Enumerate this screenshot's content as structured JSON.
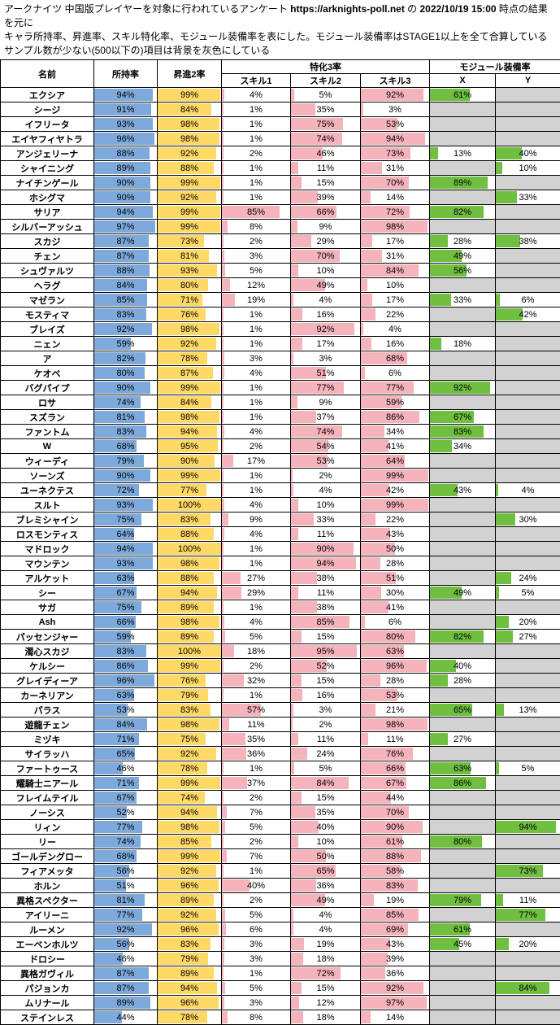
{
  "header": {
    "line1_pre": "アークナイツ 中国版プレイヤーを対象に行われているアンケート ",
    "line1_url": "https://arknights-poll.net",
    "line1_mid": " の ",
    "line1_datetime": "2022/10/19 15:00",
    "line1_post": " 時点の結果を元に",
    "line2": "キャラ所持率、昇進率、スキル特化率、モジュール装備率を表にした。モジュール装備率はSTAGE1以上を全て合算している",
    "line3": "サンプル数が少ない(500以下の)項目は背景を灰色にしている"
  },
  "colors": {
    "own_bar": "#7EA9DB",
    "own_bar_border": "#4472C4",
    "promo_bar": "#FFD966",
    "promo_bar_border": "#BF8F00",
    "skill_bar": "#F5B3BC",
    "skill_bar_border": "#E08C99",
    "module_bar": "#70BF41",
    "module_bar_border": "#538135",
    "missing_bg": "#D2D2D2",
    "grid": "#000000"
  },
  "chart_data": {
    "type": "table",
    "title": "アークナイツ 中国版プレイヤー アンケート結果 (所持率・昇進2率・特化3率・モジュール装備率)",
    "unit": "%",
    "columns": {
      "name": "名前",
      "own": "所持率",
      "promo": "昇進2率",
      "mastery_group": "特化3率",
      "skill1": "スキル1",
      "skill2": "スキル2",
      "skill3": "スキル3",
      "module_group": "モジュール装備率",
      "module_x": "X",
      "module_y": "Y"
    },
    "rows": [
      {
        "name": "エクシア",
        "own": 94,
        "promo": 99,
        "s1": 4,
        "s2": 5,
        "s3": 92,
        "x": 61,
        "y": null
      },
      {
        "name": "シージ",
        "own": 91,
        "promo": 84,
        "s1": 1,
        "s2": 35,
        "s3": 3,
        "x": null,
        "y": null
      },
      {
        "name": "イフリータ",
        "own": 93,
        "promo": 98,
        "s1": 1,
        "s2": 75,
        "s3": 53,
        "x": null,
        "y": null
      },
      {
        "name": "エイヤフィヤトラ",
        "own": 96,
        "promo": 98,
        "s1": 1,
        "s2": 74,
        "s3": 94,
        "x": null,
        "y": null
      },
      {
        "name": "アンジェリーナ",
        "own": 88,
        "promo": 92,
        "s1": 2,
        "s2": 46,
        "s3": 73,
        "x": 13,
        "y": 40
      },
      {
        "name": "シャイニング",
        "own": 89,
        "promo": 88,
        "s1": 1,
        "s2": 11,
        "s3": 31,
        "x": null,
        "y": 10
      },
      {
        "name": "ナイチンゲール",
        "own": 90,
        "promo": 99,
        "s1": 1,
        "s2": 15,
        "s3": 70,
        "x": 89,
        "y": null
      },
      {
        "name": "ホシグマ",
        "own": 90,
        "promo": 92,
        "s1": 1,
        "s2": 39,
        "s3": 14,
        "x": null,
        "y": 33
      },
      {
        "name": "サリア",
        "own": 94,
        "promo": 99,
        "s1": 85,
        "s2": 66,
        "s3": 72,
        "x": 82,
        "y": null
      },
      {
        "name": "シルバーアッシュ",
        "own": 97,
        "promo": 99,
        "s1": 8,
        "s2": 9,
        "s3": 98,
        "x": null,
        "y": null
      },
      {
        "name": "スカジ",
        "own": 87,
        "promo": 73,
        "s1": 2,
        "s2": 29,
        "s3": 17,
        "x": 28,
        "y": 38
      },
      {
        "name": "チェン",
        "own": 87,
        "promo": 81,
        "s1": 3,
        "s2": 70,
        "s3": 31,
        "x": 49,
        "y": null
      },
      {
        "name": "シュヴァルツ",
        "own": 88,
        "promo": 93,
        "s1": 5,
        "s2": 10,
        "s3": 84,
        "x": 56,
        "y": null
      },
      {
        "name": "ヘラグ",
        "own": 84,
        "promo": 80,
        "s1": 12,
        "s2": 49,
        "s3": 10,
        "x": null,
        "y": null
      },
      {
        "name": "マゼラン",
        "own": 85,
        "promo": 71,
        "s1": 19,
        "s2": 4,
        "s3": 17,
        "x": 33,
        "y": 6
      },
      {
        "name": "モスティマ",
        "own": 83,
        "promo": 76,
        "s1": 1,
        "s2": 16,
        "s3": 22,
        "x": null,
        "y": 42
      },
      {
        "name": "ブレイズ",
        "own": 92,
        "promo": 98,
        "s1": 1,
        "s2": 92,
        "s3": 4,
        "x": null,
        "y": null
      },
      {
        "name": "ニェン",
        "own": 59,
        "promo": 92,
        "s1": 1,
        "s2": 17,
        "s3": 16,
        "x": 18,
        "y": null
      },
      {
        "name": "ア",
        "own": 82,
        "promo": 78,
        "s1": 3,
        "s2": 3,
        "s3": 68,
        "x": null,
        "y": null
      },
      {
        "name": "ケオベ",
        "own": 80,
        "promo": 87,
        "s1": 4,
        "s2": 51,
        "s3": 6,
        "x": null,
        "y": null
      },
      {
        "name": "バグパイプ",
        "own": 90,
        "promo": 99,
        "s1": 1,
        "s2": 77,
        "s3": 77,
        "x": 92,
        "y": null
      },
      {
        "name": "ロサ",
        "own": 74,
        "promo": 84,
        "s1": 1,
        "s2": 9,
        "s3": 59,
        "x": null,
        "y": null
      },
      {
        "name": "スズラン",
        "own": 81,
        "promo": 98,
        "s1": 1,
        "s2": 37,
        "s3": 86,
        "x": 67,
        "y": null
      },
      {
        "name": "ファントム",
        "own": 83,
        "promo": 94,
        "s1": 4,
        "s2": 74,
        "s3": 34,
        "x": 83,
        "y": null
      },
      {
        "name": "W",
        "own": 68,
        "promo": 95,
        "s1": 2,
        "s2": 54,
        "s3": 41,
        "x": 34,
        "y": null
      },
      {
        "name": "ウィーディ",
        "own": 79,
        "promo": 90,
        "s1": 17,
        "s2": 53,
        "s3": 64,
        "x": null,
        "y": null
      },
      {
        "name": "ソーンズ",
        "own": 90,
        "promo": 99,
        "s1": 1,
        "s2": 2,
        "s3": 99,
        "x": null,
        "y": null
      },
      {
        "name": "ユーネクテス",
        "own": 72,
        "promo": 77,
        "s1": 1,
        "s2": 4,
        "s3": 42,
        "x": 43,
        "y": 4
      },
      {
        "name": "スルト",
        "own": 93,
        "promo": 100,
        "s1": 4,
        "s2": 10,
        "s3": 99,
        "x": null,
        "y": null
      },
      {
        "name": "ブレミシャイン",
        "own": 75,
        "promo": 83,
        "s1": 9,
        "s2": 33,
        "s3": 22,
        "x": null,
        "y": 30
      },
      {
        "name": "ロスモンティス",
        "own": 64,
        "promo": 88,
        "s1": 4,
        "s2": 11,
        "s3": 43,
        "x": null,
        "y": null
      },
      {
        "name": "マドロック",
        "own": 94,
        "promo": 100,
        "s1": 1,
        "s2": 90,
        "s3": 50,
        "x": null,
        "y": null
      },
      {
        "name": "マウンテン",
        "own": 93,
        "promo": 98,
        "s1": 1,
        "s2": 94,
        "s3": 28,
        "x": null,
        "y": null
      },
      {
        "name": "アルケット",
        "own": 63,
        "promo": 88,
        "s1": 27,
        "s2": 38,
        "s3": 51,
        "x": null,
        "y": 24
      },
      {
        "name": "シー",
        "own": 67,
        "promo": 94,
        "s1": 29,
        "s2": 11,
        "s3": 30,
        "x": 49,
        "y": 5
      },
      {
        "name": "サガ",
        "own": 75,
        "promo": 89,
        "s1": 1,
        "s2": 38,
        "s3": 41,
        "x": null,
        "y": null
      },
      {
        "name": "Ash",
        "own": 66,
        "promo": 98,
        "s1": 4,
        "s2": 85,
        "s3": 6,
        "x": null,
        "y": 20
      },
      {
        "name": "パッセンジャー",
        "own": 59,
        "promo": 89,
        "s1": 5,
        "s2": 15,
        "s3": 80,
        "x": 82,
        "y": 27
      },
      {
        "name": "濁心スカジ",
        "own": 83,
        "promo": 100,
        "s1": 18,
        "s2": 95,
        "s3": 63,
        "x": null,
        "y": null
      },
      {
        "name": "ケルシー",
        "own": 86,
        "promo": 99,
        "s1": 2,
        "s2": 52,
        "s3": 96,
        "x": 40,
        "y": null
      },
      {
        "name": "グレイディーア",
        "own": 96,
        "promo": 76,
        "s1": 32,
        "s2": 15,
        "s3": 28,
        "x": 28,
        "y": null
      },
      {
        "name": "カーネリアン",
        "own": 63,
        "promo": 79,
        "s1": 1,
        "s2": 16,
        "s3": 53,
        "x": null,
        "y": null
      },
      {
        "name": "パラス",
        "own": 53,
        "promo": 83,
        "s1": 57,
        "s2": 3,
        "s3": 21,
        "x": 65,
        "y": 13
      },
      {
        "name": "遊龍チェン",
        "own": 84,
        "promo": 98,
        "s1": 11,
        "s2": 2,
        "s3": 98,
        "x": null,
        "y": null
      },
      {
        "name": "ミヅキ",
        "own": 71,
        "promo": 75,
        "s1": 35,
        "s2": 11,
        "s3": 11,
        "x": 27,
        "y": null
      },
      {
        "name": "サイラッハ",
        "own": 65,
        "promo": 92,
        "s1": 36,
        "s2": 24,
        "s3": 76,
        "x": null,
        "y": null
      },
      {
        "name": "ファートゥース",
        "own": 46,
        "promo": 78,
        "s1": 1,
        "s2": 5,
        "s3": 66,
        "x": 63,
        "y": 5
      },
      {
        "name": "耀騎士ニアール",
        "own": 71,
        "promo": 99,
        "s1": 37,
        "s2": 84,
        "s3": 67,
        "x": 86,
        "y": null
      },
      {
        "name": "フレイムテイル",
        "own": 67,
        "promo": 74,
        "s1": 2,
        "s2": 15,
        "s3": 44,
        "x": null,
        "y": null
      },
      {
        "name": "ノーシス",
        "own": 52,
        "promo": 94,
        "s1": 7,
        "s2": 35,
        "s3": 70,
        "x": null,
        "y": null
      },
      {
        "name": "リィン",
        "own": 77,
        "promo": 98,
        "s1": 5,
        "s2": 40,
        "s3": 90,
        "x": null,
        "y": 94
      },
      {
        "name": "リー",
        "own": 74,
        "promo": 85,
        "s1": 2,
        "s2": 10,
        "s3": 61,
        "x": 80,
        "y": null
      },
      {
        "name": "ゴールデングロー",
        "own": 68,
        "promo": 99,
        "s1": 7,
        "s2": 50,
        "s3": 88,
        "x": null,
        "y": null
      },
      {
        "name": "フィアメッタ",
        "own": 56,
        "promo": 92,
        "s1": 1,
        "s2": 65,
        "s3": 58,
        "x": null,
        "y": 73
      },
      {
        "name": "ホルン",
        "own": 51,
        "promo": 96,
        "s1": 40,
        "s2": 36,
        "s3": 83,
        "x": null,
        "y": null
      },
      {
        "name": "異格スペクター",
        "own": 81,
        "promo": 89,
        "s1": 2,
        "s2": 49,
        "s3": 19,
        "x": 79,
        "y": 11
      },
      {
        "name": "アイリーニ",
        "own": 77,
        "promo": 92,
        "s1": 5,
        "s2": 4,
        "s3": 85,
        "x": null,
        "y": 77
      },
      {
        "name": "ルーメン",
        "own": 92,
        "promo": 96,
        "s1": 6,
        "s2": 4,
        "s3": 69,
        "x": 61,
        "y": null
      },
      {
        "name": "エーベンホルツ",
        "own": 56,
        "promo": 83,
        "s1": 3,
        "s2": 19,
        "s3": 43,
        "x": 45,
        "y": 20
      },
      {
        "name": "ドロシー",
        "own": 46,
        "promo": 79,
        "s1": 3,
        "s2": 18,
        "s3": 39,
        "x": null,
        "y": null
      },
      {
        "name": "異格ガヴィル",
        "own": 87,
        "promo": 89,
        "s1": 1,
        "s2": 72,
        "s3": 36,
        "x": null,
        "y": null
      },
      {
        "name": "パジョンカ",
        "own": 87,
        "promo": 94,
        "s1": 5,
        "s2": 15,
        "s3": 92,
        "x": null,
        "y": 84
      },
      {
        "name": "ムリナール",
        "own": 89,
        "promo": 96,
        "s1": 3,
        "s2": 12,
        "s3": 97,
        "x": null,
        "y": null
      },
      {
        "name": "ステインレス",
        "own": 44,
        "promo": 78,
        "s1": 8,
        "s2": 18,
        "s3": 14,
        "x": null,
        "y": null
      }
    ]
  }
}
